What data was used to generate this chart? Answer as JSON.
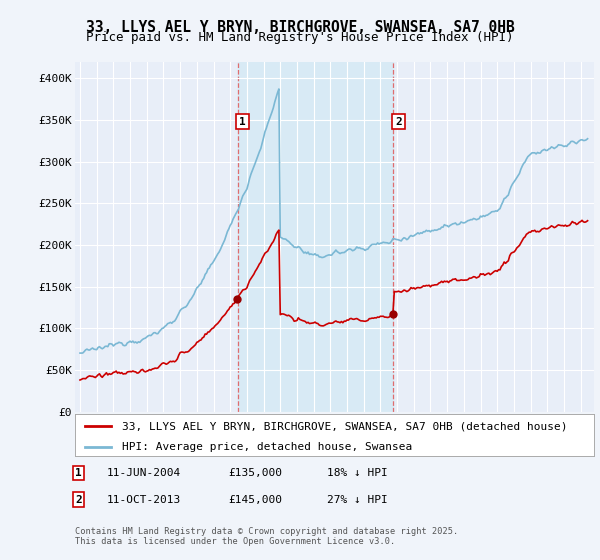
{
  "title": "33, LLYS AEL Y BRYN, BIRCHGROVE, SWANSEA, SA7 0HB",
  "subtitle": "Price paid vs. HM Land Registry's House Price Index (HPI)",
  "ylim": [
    0,
    420000
  ],
  "yticks": [
    0,
    50000,
    100000,
    150000,
    200000,
    250000,
    300000,
    350000,
    400000
  ],
  "ytick_labels": [
    "£0",
    "£50K",
    "£100K",
    "£150K",
    "£200K",
    "£250K",
    "£300K",
    "£350K",
    "£400K"
  ],
  "sale1_year": 2004.44,
  "sale1_price": 135000,
  "sale2_year": 2013.78,
  "sale2_price": 145000,
  "hpi_color": "#7bb8d4",
  "sale_color": "#cc0000",
  "vline_color": "#e06060",
  "shade_color": "#d8eaf5",
  "background_color": "#f0f4fa",
  "plot_bg": "#e8eef8",
  "grid_color": "#ffffff",
  "legend_label_red": "33, LLYS AEL Y BRYN, BIRCHGROVE, SWANSEA, SA7 0HB (detached house)",
  "legend_label_blue": "HPI: Average price, detached house, Swansea",
  "footer": "Contains HM Land Registry data © Crown copyright and database right 2025.\nThis data is licensed under the Open Government Licence v3.0.",
  "title_fontsize": 10.5,
  "subtitle_fontsize": 9,
  "tick_fontsize": 8,
  "legend_fontsize": 8
}
